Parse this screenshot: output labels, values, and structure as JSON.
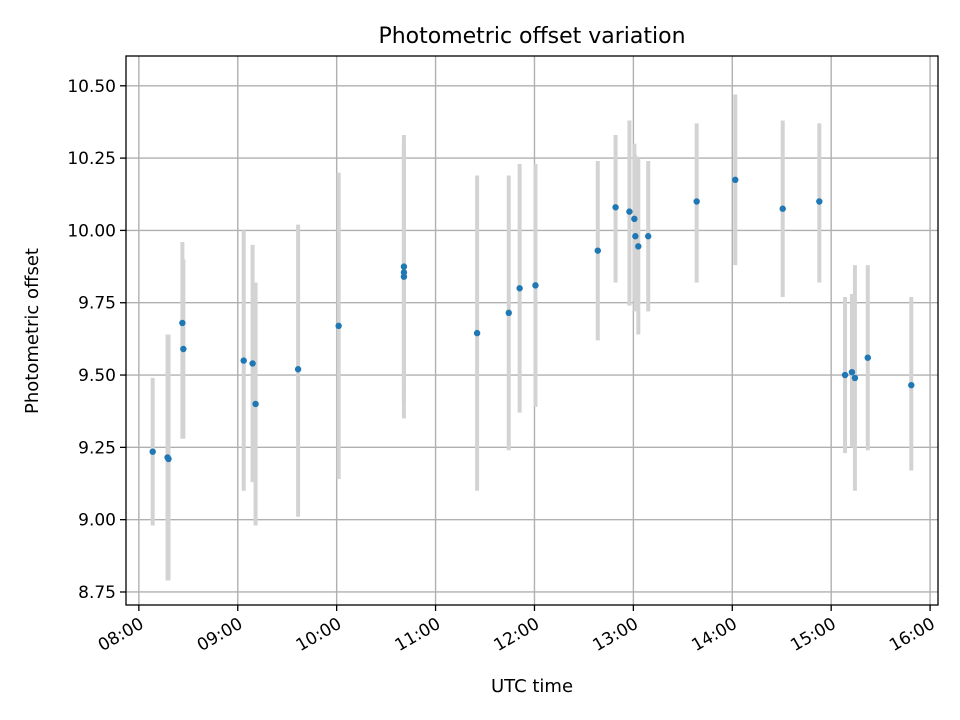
{
  "chart_data": {
    "type": "scatter",
    "title": "Photometric offset variation",
    "xlabel": "UTC time",
    "ylabel": "Photometric offset",
    "x_unit": "hours_utc",
    "xlim": [
      7.87,
      16.08
    ],
    "ylim": [
      8.705,
      10.603
    ],
    "x_ticks": [
      8,
      9,
      10,
      11,
      12,
      13,
      14,
      15,
      16
    ],
    "x_tick_labels": [
      "08:00",
      "09:00",
      "10:00",
      "11:00",
      "12:00",
      "13:00",
      "14:00",
      "15:00",
      "16:00"
    ],
    "y_ticks": [
      8.75,
      9.0,
      9.25,
      9.5,
      9.75,
      10.0,
      10.25,
      10.5
    ],
    "y_tick_labels": [
      "8.75",
      "9.00",
      "9.25",
      "9.50",
      "9.75",
      "10.00",
      "10.25",
      "10.50"
    ],
    "grid": true,
    "marker_color": "#1f77b4",
    "errorbar_color": "#d3d3d3",
    "points": [
      {
        "x": 8.14,
        "y": 9.235,
        "low": 8.98,
        "high": 9.49
      },
      {
        "x": 8.29,
        "y": 9.215,
        "low": 8.79,
        "high": 9.64
      },
      {
        "x": 8.3,
        "y": 9.21,
        "low": 8.79,
        "high": 9.64
      },
      {
        "x": 8.44,
        "y": 9.68,
        "low": 9.28,
        "high": 9.96
      },
      {
        "x": 8.45,
        "y": 9.59,
        "low": 9.28,
        "high": 9.9
      },
      {
        "x": 9.06,
        "y": 9.55,
        "low": 9.1,
        "high": 10.0
      },
      {
        "x": 9.15,
        "y": 9.54,
        "low": 9.13,
        "high": 9.95
      },
      {
        "x": 9.18,
        "y": 9.4,
        "low": 8.98,
        "high": 9.82
      },
      {
        "x": 9.61,
        "y": 9.52,
        "low": 9.01,
        "high": 10.02
      },
      {
        "x": 10.02,
        "y": 9.67,
        "low": 9.14,
        "high": 10.2
      },
      {
        "x": 10.68,
        "y": 9.875,
        "low": 9.35,
        "high": 10.33
      },
      {
        "x": 10.68,
        "y": 9.855,
        "low": 9.45,
        "high": 10.3
      },
      {
        "x": 10.68,
        "y": 9.84,
        "low": 9.4,
        "high": 10.28
      },
      {
        "x": 11.42,
        "y": 9.645,
        "low": 9.1,
        "high": 10.19
      },
      {
        "x": 11.74,
        "y": 9.715,
        "low": 9.24,
        "high": 10.19
      },
      {
        "x": 11.85,
        "y": 9.8,
        "low": 9.37,
        "high": 10.23
      },
      {
        "x": 12.01,
        "y": 9.81,
        "low": 9.39,
        "high": 10.23
      },
      {
        "x": 12.64,
        "y": 9.93,
        "low": 9.62,
        "high": 10.24
      },
      {
        "x": 12.82,
        "y": 10.08,
        "low": 9.82,
        "high": 10.33
      },
      {
        "x": 12.96,
        "y": 10.065,
        "low": 9.74,
        "high": 10.38
      },
      {
        "x": 13.01,
        "y": 10.04,
        "low": 9.76,
        "high": 10.3
      },
      {
        "x": 13.02,
        "y": 9.98,
        "low": 9.72,
        "high": 10.26
      },
      {
        "x": 13.05,
        "y": 9.945,
        "low": 9.64,
        "high": 10.25
      },
      {
        "x": 13.15,
        "y": 9.98,
        "low": 9.72,
        "high": 10.24
      },
      {
        "x": 13.64,
        "y": 10.1,
        "low": 9.82,
        "high": 10.37
      },
      {
        "x": 14.03,
        "y": 10.175,
        "low": 9.88,
        "high": 10.47
      },
      {
        "x": 14.51,
        "y": 10.075,
        "low": 9.77,
        "high": 10.38
      },
      {
        "x": 14.88,
        "y": 10.1,
        "low": 9.82,
        "high": 10.37
      },
      {
        "x": 15.14,
        "y": 9.5,
        "low": 9.23,
        "high": 9.77
      },
      {
        "x": 15.21,
        "y": 9.51,
        "low": 9.25,
        "high": 9.78
      },
      {
        "x": 15.24,
        "y": 9.49,
        "low": 9.1,
        "high": 9.88
      },
      {
        "x": 15.37,
        "y": 9.56,
        "low": 9.24,
        "high": 9.88
      },
      {
        "x": 15.81,
        "y": 9.465,
        "low": 9.17,
        "high": 9.77
      }
    ]
  }
}
